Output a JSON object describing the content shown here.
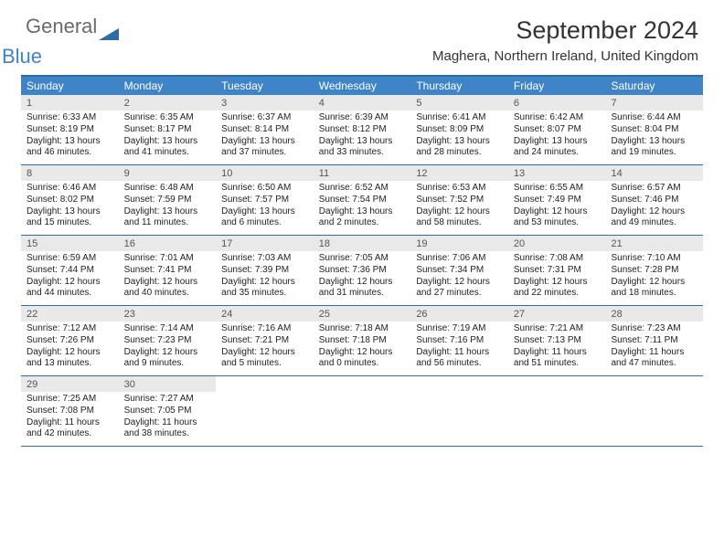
{
  "logo": {
    "text1": "General",
    "text2": "Blue",
    "shape_color": "#2f6ca3"
  },
  "header": {
    "month_title": "September 2024",
    "location": "Maghera, Northern Ireland, United Kingdom"
  },
  "colors": {
    "header_bar": "#3e84c6",
    "border": "#2f6ca3",
    "daynum_bg": "#e9e9e9",
    "text": "#222222"
  },
  "weekdays": [
    "Sunday",
    "Monday",
    "Tuesday",
    "Wednesday",
    "Thursday",
    "Friday",
    "Saturday"
  ],
  "weeks": [
    [
      {
        "n": "1",
        "sr": "Sunrise: 6:33 AM",
        "ss": "Sunset: 8:19 PM",
        "d1": "Daylight: 13 hours",
        "d2": "and 46 minutes."
      },
      {
        "n": "2",
        "sr": "Sunrise: 6:35 AM",
        "ss": "Sunset: 8:17 PM",
        "d1": "Daylight: 13 hours",
        "d2": "and 41 minutes."
      },
      {
        "n": "3",
        "sr": "Sunrise: 6:37 AM",
        "ss": "Sunset: 8:14 PM",
        "d1": "Daylight: 13 hours",
        "d2": "and 37 minutes."
      },
      {
        "n": "4",
        "sr": "Sunrise: 6:39 AM",
        "ss": "Sunset: 8:12 PM",
        "d1": "Daylight: 13 hours",
        "d2": "and 33 minutes."
      },
      {
        "n": "5",
        "sr": "Sunrise: 6:41 AM",
        "ss": "Sunset: 8:09 PM",
        "d1": "Daylight: 13 hours",
        "d2": "and 28 minutes."
      },
      {
        "n": "6",
        "sr": "Sunrise: 6:42 AM",
        "ss": "Sunset: 8:07 PM",
        "d1": "Daylight: 13 hours",
        "d2": "and 24 minutes."
      },
      {
        "n": "7",
        "sr": "Sunrise: 6:44 AM",
        "ss": "Sunset: 8:04 PM",
        "d1": "Daylight: 13 hours",
        "d2": "and 19 minutes."
      }
    ],
    [
      {
        "n": "8",
        "sr": "Sunrise: 6:46 AM",
        "ss": "Sunset: 8:02 PM",
        "d1": "Daylight: 13 hours",
        "d2": "and 15 minutes."
      },
      {
        "n": "9",
        "sr": "Sunrise: 6:48 AM",
        "ss": "Sunset: 7:59 PM",
        "d1": "Daylight: 13 hours",
        "d2": "and 11 minutes."
      },
      {
        "n": "10",
        "sr": "Sunrise: 6:50 AM",
        "ss": "Sunset: 7:57 PM",
        "d1": "Daylight: 13 hours",
        "d2": "and 6 minutes."
      },
      {
        "n": "11",
        "sr": "Sunrise: 6:52 AM",
        "ss": "Sunset: 7:54 PM",
        "d1": "Daylight: 13 hours",
        "d2": "and 2 minutes."
      },
      {
        "n": "12",
        "sr": "Sunrise: 6:53 AM",
        "ss": "Sunset: 7:52 PM",
        "d1": "Daylight: 12 hours",
        "d2": "and 58 minutes."
      },
      {
        "n": "13",
        "sr": "Sunrise: 6:55 AM",
        "ss": "Sunset: 7:49 PM",
        "d1": "Daylight: 12 hours",
        "d2": "and 53 minutes."
      },
      {
        "n": "14",
        "sr": "Sunrise: 6:57 AM",
        "ss": "Sunset: 7:46 PM",
        "d1": "Daylight: 12 hours",
        "d2": "and 49 minutes."
      }
    ],
    [
      {
        "n": "15",
        "sr": "Sunrise: 6:59 AM",
        "ss": "Sunset: 7:44 PM",
        "d1": "Daylight: 12 hours",
        "d2": "and 44 minutes."
      },
      {
        "n": "16",
        "sr": "Sunrise: 7:01 AM",
        "ss": "Sunset: 7:41 PM",
        "d1": "Daylight: 12 hours",
        "d2": "and 40 minutes."
      },
      {
        "n": "17",
        "sr": "Sunrise: 7:03 AM",
        "ss": "Sunset: 7:39 PM",
        "d1": "Daylight: 12 hours",
        "d2": "and 35 minutes."
      },
      {
        "n": "18",
        "sr": "Sunrise: 7:05 AM",
        "ss": "Sunset: 7:36 PM",
        "d1": "Daylight: 12 hours",
        "d2": "and 31 minutes."
      },
      {
        "n": "19",
        "sr": "Sunrise: 7:06 AM",
        "ss": "Sunset: 7:34 PM",
        "d1": "Daylight: 12 hours",
        "d2": "and 27 minutes."
      },
      {
        "n": "20",
        "sr": "Sunrise: 7:08 AM",
        "ss": "Sunset: 7:31 PM",
        "d1": "Daylight: 12 hours",
        "d2": "and 22 minutes."
      },
      {
        "n": "21",
        "sr": "Sunrise: 7:10 AM",
        "ss": "Sunset: 7:28 PM",
        "d1": "Daylight: 12 hours",
        "d2": "and 18 minutes."
      }
    ],
    [
      {
        "n": "22",
        "sr": "Sunrise: 7:12 AM",
        "ss": "Sunset: 7:26 PM",
        "d1": "Daylight: 12 hours",
        "d2": "and 13 minutes."
      },
      {
        "n": "23",
        "sr": "Sunrise: 7:14 AM",
        "ss": "Sunset: 7:23 PM",
        "d1": "Daylight: 12 hours",
        "d2": "and 9 minutes."
      },
      {
        "n": "24",
        "sr": "Sunrise: 7:16 AM",
        "ss": "Sunset: 7:21 PM",
        "d1": "Daylight: 12 hours",
        "d2": "and 5 minutes."
      },
      {
        "n": "25",
        "sr": "Sunrise: 7:18 AM",
        "ss": "Sunset: 7:18 PM",
        "d1": "Daylight: 12 hours",
        "d2": "and 0 minutes."
      },
      {
        "n": "26",
        "sr": "Sunrise: 7:19 AM",
        "ss": "Sunset: 7:16 PM",
        "d1": "Daylight: 11 hours",
        "d2": "and 56 minutes."
      },
      {
        "n": "27",
        "sr": "Sunrise: 7:21 AM",
        "ss": "Sunset: 7:13 PM",
        "d1": "Daylight: 11 hours",
        "d2": "and 51 minutes."
      },
      {
        "n": "28",
        "sr": "Sunrise: 7:23 AM",
        "ss": "Sunset: 7:11 PM",
        "d1": "Daylight: 11 hours",
        "d2": "and 47 minutes."
      }
    ],
    [
      {
        "n": "29",
        "sr": "Sunrise: 7:25 AM",
        "ss": "Sunset: 7:08 PM",
        "d1": "Daylight: 11 hours",
        "d2": "and 42 minutes."
      },
      {
        "n": "30",
        "sr": "Sunrise: 7:27 AM",
        "ss": "Sunset: 7:05 PM",
        "d1": "Daylight: 11 hours",
        "d2": "and 38 minutes."
      },
      null,
      null,
      null,
      null,
      null
    ]
  ]
}
